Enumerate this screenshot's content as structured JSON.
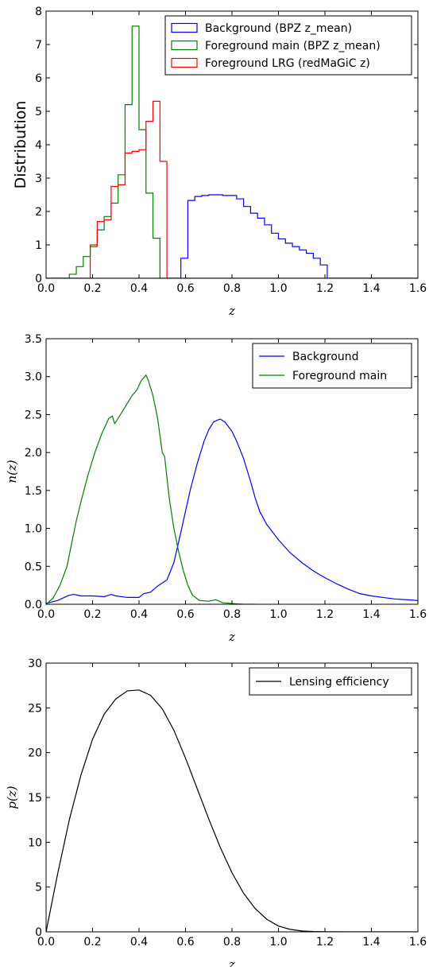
{
  "chart_data": [
    {
      "type": "histogram",
      "xlabel": "z",
      "ylabel": "Distribution",
      "xlim": [
        0.0,
        1.6
      ],
      "ylim": [
        0,
        8
      ],
      "xticks": [
        "0.0",
        "0.2",
        "0.4",
        "0.6",
        "0.8",
        "1.0",
        "1.2",
        "1.4",
        "1.6"
      ],
      "yticks": [
        "0",
        "1",
        "2",
        "3",
        "4",
        "5",
        "6",
        "7",
        "8"
      ],
      "legend_position": "top-right",
      "series": [
        {
          "name": "Background (BPZ z_mean)",
          "color": "#0000ff",
          "edges": [
            0.0,
            0.58,
            0.61,
            0.64,
            0.67,
            0.7,
            0.73,
            0.76,
            0.79,
            0.82,
            0.85,
            0.88,
            0.91,
            0.94,
            0.97,
            1.0,
            1.03,
            1.06,
            1.09,
            1.12,
            1.15,
            1.18,
            1.21,
            1.6
          ],
          "values": [
            0,
            0.6,
            2.33,
            2.45,
            2.48,
            2.5,
            2.5,
            2.48,
            2.48,
            2.38,
            2.15,
            1.95,
            1.8,
            1.6,
            1.35,
            1.18,
            1.05,
            0.95,
            0.85,
            0.75,
            0.6,
            0.4,
            0
          ]
        },
        {
          "name": "Foreground main (BPZ z_mean)",
          "color": "#008000",
          "edges": [
            0.0,
            0.1,
            0.13,
            0.16,
            0.19,
            0.22,
            0.25,
            0.28,
            0.31,
            0.34,
            0.37,
            0.4,
            0.43,
            0.46,
            0.49,
            1.6
          ],
          "values": [
            0,
            0.12,
            0.35,
            0.65,
            0.95,
            1.45,
            1.85,
            2.25,
            3.1,
            5.2,
            7.55,
            4.45,
            2.55,
            1.2,
            0
          ]
        },
        {
          "name": "Foreground LRG (redMaGiC z)",
          "color": "#ff0000",
          "edges": [
            0.0,
            0.19,
            0.22,
            0.25,
            0.28,
            0.31,
            0.34,
            0.37,
            0.4,
            0.43,
            0.46,
            0.49,
            0.52,
            1.6
          ],
          "values": [
            0,
            1.0,
            1.7,
            1.75,
            2.75,
            2.8,
            3.75,
            3.8,
            3.85,
            4.7,
            5.3,
            3.5,
            0
          ]
        }
      ]
    },
    {
      "type": "line",
      "xlabel": "z",
      "ylabel": "n(z)",
      "xlim": [
        0.0,
        1.6
      ],
      "ylim": [
        0.0,
        3.5
      ],
      "xticks": [
        "0.0",
        "0.2",
        "0.4",
        "0.6",
        "0.8",
        "1.0",
        "1.2",
        "1.4",
        "1.6"
      ],
      "yticks": [
        "0.0",
        "0.5",
        "1.0",
        "1.5",
        "2.0",
        "2.5",
        "3.0",
        "3.5"
      ],
      "legend_position": "top-right",
      "series": [
        {
          "name": "Background",
          "color": "#0000ff",
          "x": [
            0.0,
            0.05,
            0.1,
            0.12,
            0.15,
            0.2,
            0.25,
            0.28,
            0.3,
            0.35,
            0.4,
            0.42,
            0.45,
            0.48,
            0.5,
            0.52,
            0.55,
            0.58,
            0.62,
            0.65,
            0.68,
            0.7,
            0.72,
            0.74,
            0.75,
            0.77,
            0.8,
            0.82,
            0.85,
            0.88,
            0.9,
            0.92,
            0.95,
            1.0,
            1.05,
            1.1,
            1.15,
            1.2,
            1.25,
            1.3,
            1.35,
            1.4,
            1.45,
            1.5,
            1.55,
            1.6
          ],
          "y": [
            0.01,
            0.05,
            0.12,
            0.13,
            0.11,
            0.11,
            0.1,
            0.13,
            0.11,
            0.09,
            0.09,
            0.14,
            0.16,
            0.24,
            0.28,
            0.32,
            0.55,
            0.95,
            1.5,
            1.85,
            2.15,
            2.3,
            2.4,
            2.43,
            2.44,
            2.4,
            2.28,
            2.15,
            1.92,
            1.62,
            1.4,
            1.22,
            1.05,
            0.85,
            0.68,
            0.55,
            0.44,
            0.35,
            0.27,
            0.2,
            0.14,
            0.11,
            0.09,
            0.07,
            0.06,
            0.05
          ]
        },
        {
          "name": "Foreground main",
          "color": "#008000",
          "x": [
            0.0,
            0.03,
            0.06,
            0.09,
            0.11,
            0.13,
            0.15,
            0.18,
            0.21,
            0.24,
            0.27,
            0.285,
            0.295,
            0.31,
            0.34,
            0.37,
            0.39,
            0.41,
            0.425,
            0.43,
            0.44,
            0.46,
            0.48,
            0.5,
            0.51,
            0.53,
            0.55,
            0.57,
            0.59,
            0.61,
            0.63,
            0.66,
            0.7,
            0.73,
            0.76,
            0.8,
            0.85,
            0.9
          ],
          "y": [
            0.0,
            0.08,
            0.25,
            0.5,
            0.8,
            1.1,
            1.35,
            1.7,
            2.0,
            2.25,
            2.45,
            2.48,
            2.38,
            2.45,
            2.6,
            2.75,
            2.82,
            2.95,
            3.0,
            3.02,
            2.95,
            2.75,
            2.45,
            2.0,
            1.95,
            1.4,
            1.0,
            0.7,
            0.45,
            0.25,
            0.12,
            0.05,
            0.04,
            0.06,
            0.02,
            0.01,
            0.0,
            0.0
          ]
        }
      ]
    },
    {
      "type": "line",
      "xlabel": "z",
      "ylabel": "p(z)",
      "xlim": [
        0.0,
        1.6
      ],
      "ylim": [
        0,
        30
      ],
      "xticks": [
        "0.0",
        "0.2",
        "0.4",
        "0.6",
        "0.8",
        "1.0",
        "1.2",
        "1.4",
        "1.6"
      ],
      "yticks": [
        "0",
        "5",
        "10",
        "15",
        "20",
        "25",
        "30"
      ],
      "legend_position": "top-right",
      "series": [
        {
          "name": "Lensing efficiency",
          "color": "#000000",
          "x": [
            0.0,
            0.05,
            0.1,
            0.15,
            0.2,
            0.25,
            0.3,
            0.35,
            0.4,
            0.45,
            0.5,
            0.55,
            0.6,
            0.65,
            0.7,
            0.75,
            0.8,
            0.85,
            0.9,
            0.95,
            1.0,
            1.05,
            1.1,
            1.15,
            1.2,
            1.3,
            1.4,
            1.5,
            1.6
          ],
          "y": [
            0.0,
            6.5,
            12.5,
            17.5,
            21.5,
            24.3,
            26.0,
            26.9,
            27.0,
            26.4,
            24.9,
            22.5,
            19.4,
            16.0,
            12.6,
            9.4,
            6.6,
            4.3,
            2.6,
            1.4,
            0.65,
            0.28,
            0.1,
            0.03,
            0.01,
            0.0,
            0.0,
            0.0,
            0.0
          ]
        }
      ]
    }
  ]
}
